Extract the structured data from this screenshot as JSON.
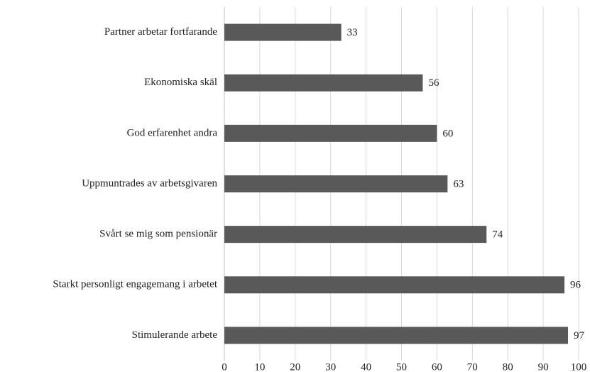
{
  "chart_data": {
    "type": "bar",
    "orientation": "horizontal",
    "categories": [
      "Partner arbetar fortfarande",
      "Ekonomiska skäl",
      "God erfarenhet andra",
      "Uppmuntrades av arbetsgivaren",
      "Svårt se mig som pensionär",
      "Starkt personligt engagemang i arbetet",
      "Stimulerande arbete"
    ],
    "values": [
      33,
      56,
      60,
      63,
      74,
      96,
      97
    ],
    "color": "#595959",
    "xlim": [
      0,
      100
    ],
    "xticks": [
      0,
      10,
      20,
      30,
      40,
      50,
      60,
      70,
      80,
      90,
      100
    ],
    "grid": true
  }
}
